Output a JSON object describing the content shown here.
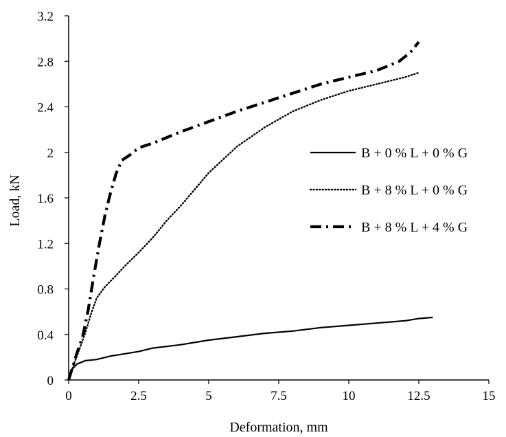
{
  "chart_data": {
    "type": "line",
    "title": "",
    "xlabel": "Deformation, mm",
    "ylabel": "Load, kN",
    "xlim": [
      0,
      15
    ],
    "ylim": [
      0,
      3.2
    ],
    "xticks": [
      "0",
      "2.5",
      "5",
      "7.5",
      "10",
      "12.5",
      "15"
    ],
    "yticks": [
      "0",
      "0.4",
      "0.8",
      "1.2",
      "1.6",
      "2",
      "2.4",
      "2.8",
      "3.2"
    ],
    "grid": false,
    "legend_position": "right",
    "series": [
      {
        "name": "B + 0 % L + 0 % G",
        "style": "solid",
        "color": "#000000",
        "x": [
          0,
          0.1,
          0.3,
          0.6,
          1.0,
          1.5,
          2.0,
          2.5,
          3.0,
          4.0,
          5.0,
          6.0,
          7.0,
          8.0,
          9.0,
          10.0,
          11.0,
          12.0,
          12.5,
          13.0
        ],
        "y": [
          0,
          0.09,
          0.14,
          0.17,
          0.18,
          0.21,
          0.23,
          0.25,
          0.28,
          0.31,
          0.35,
          0.38,
          0.41,
          0.43,
          0.46,
          0.48,
          0.5,
          0.52,
          0.54,
          0.55
        ]
      },
      {
        "name": "B + 8 % L + 0 % G",
        "style": "dotted",
        "color": "#000000",
        "x": [
          0,
          0.2,
          0.4,
          0.6,
          0.8,
          1.0,
          1.3,
          1.7,
          2.0,
          2.5,
          3.0,
          3.5,
          4.0,
          5.0,
          6.0,
          7.0,
          8.0,
          9.0,
          10.0,
          11.0,
          12.0,
          12.5
        ],
        "y": [
          0,
          0.15,
          0.28,
          0.42,
          0.58,
          0.72,
          0.82,
          0.92,
          1.0,
          1.12,
          1.25,
          1.4,
          1.53,
          1.82,
          2.05,
          2.22,
          2.36,
          2.46,
          2.54,
          2.6,
          2.66,
          2.7
        ]
      },
      {
        "name": "B + 8 % L + 4 % G",
        "style": "dash-dot",
        "color": "#000000",
        "x": [
          0,
          0.3,
          0.5,
          0.7,
          0.9,
          1.1,
          1.3,
          1.5,
          1.7,
          1.9,
          2.2,
          2.5,
          3.0,
          4.0,
          5.0,
          6.0,
          7.0,
          8.0,
          9.0,
          10.0,
          11.0,
          11.8,
          12.2,
          12.5
        ],
        "y": [
          0,
          0.24,
          0.38,
          0.62,
          0.92,
          1.2,
          1.45,
          1.65,
          1.82,
          1.93,
          1.98,
          2.04,
          2.08,
          2.18,
          2.27,
          2.36,
          2.44,
          2.52,
          2.6,
          2.66,
          2.72,
          2.8,
          2.88,
          2.97
        ]
      }
    ]
  }
}
